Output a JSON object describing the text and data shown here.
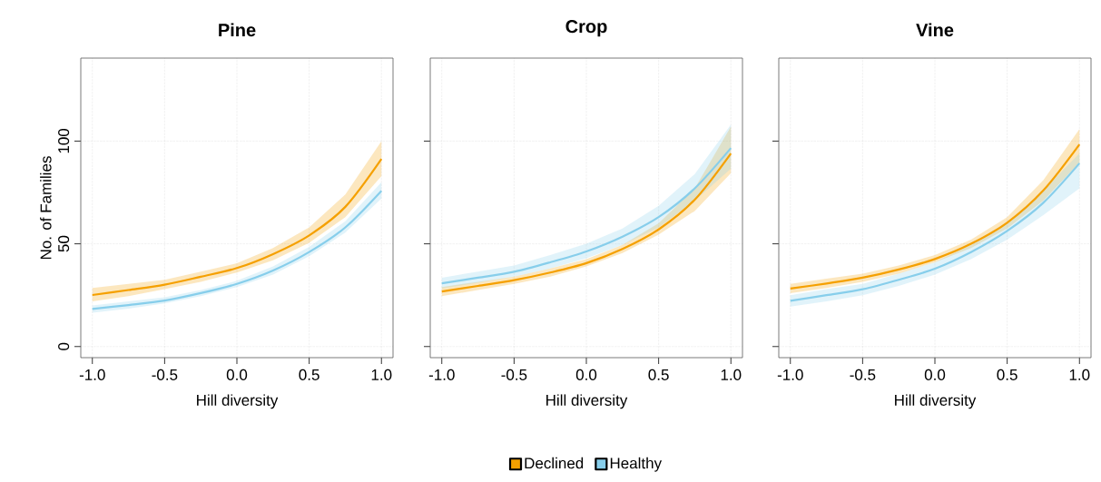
{
  "chart_data": [
    {
      "type": "line",
      "title": "Pine",
      "xlabel": "Hill diversity",
      "ylabel": "No. of Families",
      "x": [
        -1,
        -0.75,
        -0.5,
        -0.25,
        0,
        0.25,
        0.5,
        0.75,
        1
      ],
      "xlim": [
        -1.08,
        1.08
      ],
      "ylim": [
        -5.4,
        140.4
      ],
      "xticks": [
        {
          "value": -1,
          "label": "-1.0"
        },
        {
          "value": -0.5,
          "label": "-0.5"
        },
        {
          "value": 0,
          "label": "0.0"
        },
        {
          "value": 0.5,
          "label": "0.5"
        },
        {
          "value": 1,
          "label": "1.0"
        }
      ],
      "yticks": [
        0,
        50,
        100
      ],
      "grid": true,
      "series": [
        {
          "color": "#f5a000",
          "values": [
            25.1,
            27.5,
            30.1,
            34,
            38.2,
            45,
            54.1,
            68,
            91.3
          ],
          "lower": [
            22,
            24.5,
            28,
            31.5,
            36,
            42,
            50.5,
            63,
            83
          ],
          "upper": [
            28.5,
            30.5,
            32.5,
            36.5,
            40.5,
            48,
            58,
            74,
            100
          ]
        },
        {
          "color": "#87ceeb",
          "values": [
            18.3,
            20.2,
            22.4,
            26,
            30.5,
            37,
            46,
            58,
            75.8
          ],
          "lower": [
            16.5,
            18.5,
            21,
            24.5,
            29,
            35,
            44,
            55.5,
            72
          ],
          "upper": [
            20,
            22,
            24,
            27.5,
            32,
            39,
            48.5,
            61,
            80
          ]
        }
      ]
    },
    {
      "type": "line",
      "title": "Crop",
      "xlabel": "Hill diversity",
      "x": [
        -1,
        -0.75,
        -0.5,
        -0.25,
        0,
        0.25,
        0.5,
        0.75,
        1
      ],
      "xlim": [
        -1.08,
        1.08
      ],
      "ylim": [
        -5.4,
        140.4
      ],
      "xticks": [
        {
          "value": -1,
          "label": "-1.0"
        },
        {
          "value": -0.5,
          "label": "-0.5"
        },
        {
          "value": 0,
          "label": "0.0"
        },
        {
          "value": 0.5,
          "label": "0.5"
        },
        {
          "value": 1,
          "label": "1.0"
        }
      ],
      "yticks": [
        0,
        50,
        100
      ],
      "grid": true,
      "tick_labels": "x",
      "legend": "bottom",
      "series": [
        {
          "name": "Declined",
          "color": "#f5a000",
          "values": [
            26.8,
            29.5,
            32.3,
            36,
            40.6,
            47.5,
            57,
            71.5,
            94
          ],
          "lower": [
            24.5,
            27.5,
            30.5,
            34,
            39,
            45.5,
            54.5,
            66,
            84.4
          ],
          "upper": [
            29,
            31.5,
            34,
            38,
            42.5,
            49.5,
            60,
            77,
            107
          ]
        },
        {
          "name": "Healthy",
          "color": "#87ceeb",
          "values": [
            30.8,
            33.5,
            36.4,
            41,
            46.3,
            53.5,
            63,
            77,
            96.6
          ],
          "lower": [
            28.3,
            31,
            34,
            38,
            43,
            49.5,
            58,
            71,
            86.6
          ],
          "upper": [
            33.5,
            36.5,
            39.5,
            44.5,
            50,
            57.5,
            68.5,
            84,
            108
          ]
        }
      ]
    },
    {
      "type": "line",
      "title": "Vine",
      "xlabel": "Hill diversity",
      "x": [
        -1,
        -0.75,
        -0.5,
        -0.25,
        0,
        0.25,
        0.5,
        0.75,
        1
      ],
      "xlim": [
        -1.08,
        1.08
      ],
      "ylim": [
        -5.4,
        140.4
      ],
      "xticks": [
        {
          "value": -1,
          "label": "-1.0"
        },
        {
          "value": -0.5,
          "label": "-0.5"
        },
        {
          "value": 0,
          "label": "0.0"
        },
        {
          "value": 0.5,
          "label": "0.5"
        },
        {
          "value": 1,
          "label": "1.0"
        }
      ],
      "yticks": [
        0,
        50,
        100
      ],
      "grid": true,
      "tick_labels": "x",
      "series": [
        {
          "color": "#f5a000",
          "values": [
            28.2,
            30.7,
            33.5,
            37.5,
            42.6,
            50,
            60.3,
            76,
            98.4
          ],
          "lower": [
            26,
            28.5,
            31.5,
            35.5,
            41,
            48,
            57.5,
            71,
            89.5
          ],
          "upper": [
            30.5,
            33,
            35.5,
            39.5,
            44.5,
            52,
            63,
            81,
            105.8
          ]
        },
        {
          "color": "#87ceeb",
          "values": [
            22.3,
            25,
            27.9,
            32.5,
            37.9,
            46,
            56.3,
            70,
            89.2
          ],
          "lower": [
            19.5,
            22,
            25,
            29.5,
            35,
            42.5,
            52,
            64,
            77
          ],
          "upper": [
            25,
            28,
            30.5,
            35.5,
            41,
            49.5,
            60,
            76,
            94
          ]
        }
      ]
    }
  ]
}
